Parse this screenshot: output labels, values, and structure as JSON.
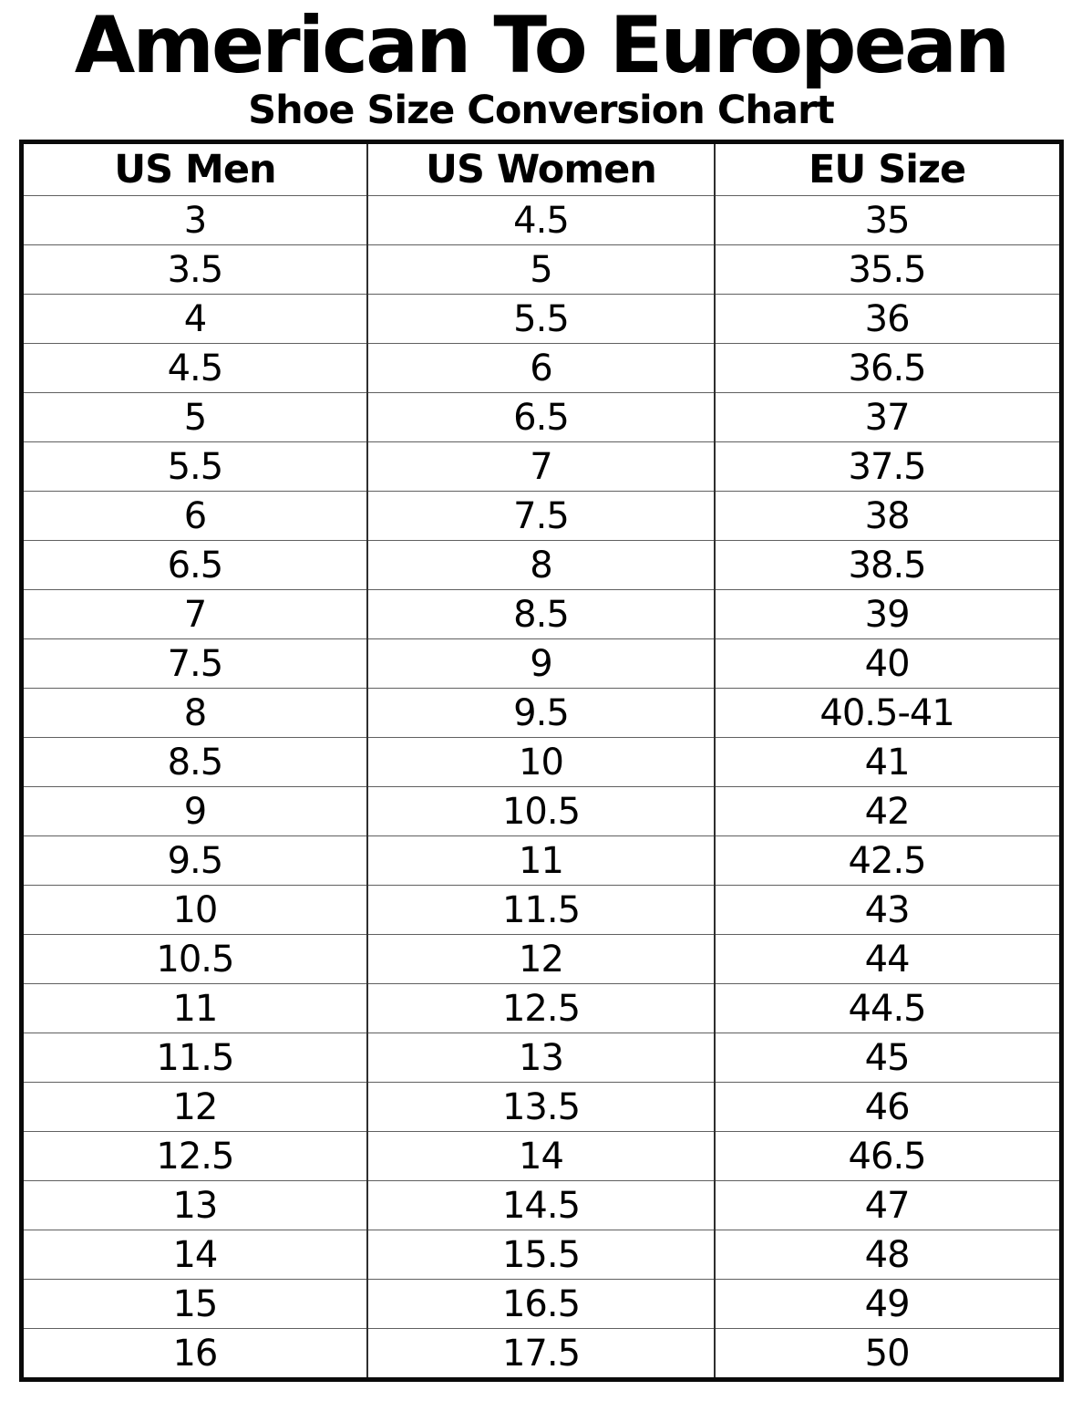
{
  "page": {
    "kind": "shoe-size-conversion-chart"
  },
  "chart_data": {
    "type": "table",
    "title": "American To European",
    "subtitle": "Shoe Size Conversion Chart",
    "columns": [
      "US Men",
      "US Women",
      "EU Size"
    ],
    "rows": [
      [
        "3",
        "4.5",
        "35"
      ],
      [
        "3.5",
        "5",
        "35.5"
      ],
      [
        "4",
        "5.5",
        "36"
      ],
      [
        "4.5",
        "6",
        "36.5"
      ],
      [
        "5",
        "6.5",
        "37"
      ],
      [
        "5.5",
        "7",
        "37.5"
      ],
      [
        "6",
        "7.5",
        "38"
      ],
      [
        "6.5",
        "8",
        "38.5"
      ],
      [
        "7",
        "8.5",
        "39"
      ],
      [
        "7.5",
        "9",
        "40"
      ],
      [
        "8",
        "9.5",
        "40.5-41"
      ],
      [
        "8.5",
        "10",
        "41"
      ],
      [
        "9",
        "10.5",
        "42"
      ],
      [
        "9.5",
        "11",
        "42.5"
      ],
      [
        "10",
        "11.5",
        "43"
      ],
      [
        "10.5",
        "12",
        "44"
      ],
      [
        "11",
        "12.5",
        "44.5"
      ],
      [
        "11.5",
        "13",
        "45"
      ],
      [
        "12",
        "13.5",
        "46"
      ],
      [
        "12.5",
        "14",
        "46.5"
      ],
      [
        "13",
        "14.5",
        "47"
      ],
      [
        "14",
        "15.5",
        "48"
      ],
      [
        "15",
        "16.5",
        "49"
      ],
      [
        "16",
        "17.5",
        "50"
      ]
    ],
    "layout": {
      "grid": true,
      "header_row": true,
      "columns_equal_width": true
    }
  },
  "colors": {
    "text": "#000000",
    "background": "#ffffff",
    "border_outer": "#0a0a0a",
    "border_inner_horizontal": "#606060",
    "border_inner_vertical": "#2e2e2e"
  }
}
